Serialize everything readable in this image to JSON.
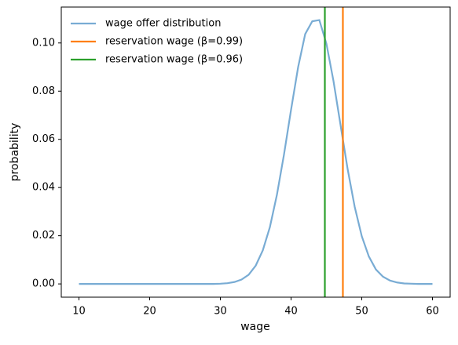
{
  "chart_data": {
    "type": "line",
    "xlabel": "wage",
    "ylabel": "probability",
    "xlim": [
      7.5,
      62.5
    ],
    "ylim": [
      -0.0055,
      0.1149
    ],
    "xticks": [
      10,
      20,
      30,
      40,
      50,
      60
    ],
    "yticks": [
      {
        "value": 0,
        "label": "0.00"
      },
      {
        "value": 0.02,
        "label": "0.02"
      },
      {
        "value": 0.04,
        "label": "0.04"
      },
      {
        "value": 0.06,
        "label": "0.06"
      },
      {
        "value": 0.08,
        "label": "0.08"
      },
      {
        "value": 0.1,
        "label": "0.10"
      }
    ],
    "legend": "upper left",
    "series": [
      {
        "name": "wage offer distribution",
        "color": "#79acd4",
        "x": [
          10,
          11,
          12,
          13,
          14,
          15,
          16,
          17,
          18,
          19,
          20,
          21,
          22,
          23,
          24,
          25,
          26,
          27,
          28,
          29,
          30,
          31,
          32,
          33,
          34,
          35,
          36,
          37,
          38,
          39,
          40,
          41,
          42,
          43,
          44,
          45,
          46,
          47,
          48,
          49,
          50,
          51,
          52,
          53,
          54,
          55,
          56,
          57,
          58,
          59,
          60
        ],
        "values": [
          0,
          0,
          0,
          0,
          0,
          0,
          0,
          0,
          0,
          0,
          0,
          0,
          0,
          0,
          0,
          0,
          0,
          0,
          0,
          0,
          0.0001,
          0.0003,
          0.0008,
          0.0018,
          0.0038,
          0.0076,
          0.0139,
          0.0235,
          0.037,
          0.0537,
          0.0723,
          0.09,
          0.1037,
          0.109,
          0.1095,
          0.0997,
          0.0842,
          0.0659,
          0.0477,
          0.032,
          0.0198,
          0.0114,
          0.006,
          0.003,
          0.0014,
          0.0006,
          0.0002,
          0.0001,
          0,
          0,
          0
        ]
      }
    ],
    "vlines": [
      {
        "name": "reservation wage (β=0.99)",
        "color": "#ff7f0e",
        "x": 47.33
      },
      {
        "name": "reservation wage (β=0.96)",
        "color": "#2ca02c",
        "x": 44.78
      }
    ]
  }
}
